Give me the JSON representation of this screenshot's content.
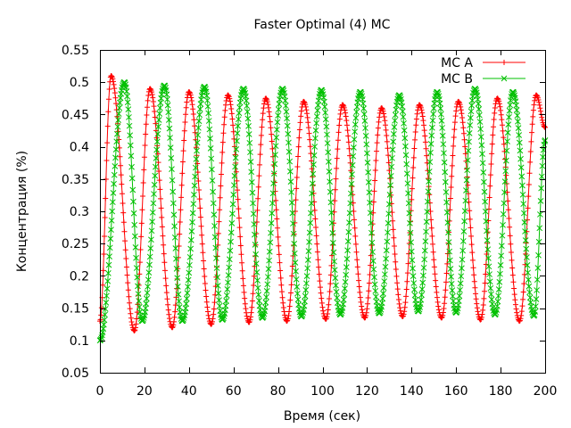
{
  "chart_data": {
    "type": "line",
    "title": "Faster Optimal (4) MC",
    "xlabel": "Время (сек)",
    "ylabel": "Концентрация (%)",
    "xlim": [
      0,
      200
    ],
    "ylim": [
      0.05,
      0.55
    ],
    "xticks": [
      "0",
      "20",
      "40",
      "60",
      "80",
      "100",
      "120",
      "140",
      "160",
      "180",
      "200"
    ],
    "yticks": [
      "0.05",
      "0.1",
      "0.15",
      "0.2",
      "0.25",
      "0.3",
      "0.35",
      "0.4",
      "0.45",
      "0.5",
      "0.55"
    ],
    "grid": false,
    "legend": "top-right",
    "series": [
      {
        "name": "MC A",
        "color": "#ff0000",
        "marker": "plus",
        "peaks": [
          [
            5.0,
            0.51
          ],
          [
            22.5,
            0.49
          ],
          [
            40.0,
            0.485
          ],
          [
            57.5,
            0.48
          ],
          [
            74.5,
            0.475
          ],
          [
            91.5,
            0.47
          ],
          [
            109.0,
            0.465
          ],
          [
            126.5,
            0.46
          ],
          [
            143.5,
            0.465
          ],
          [
            161.0,
            0.47
          ],
          [
            178.5,
            0.475
          ],
          [
            196.0,
            0.48
          ]
        ],
        "troughs": [
          [
            0,
            0.13
          ],
          [
            15.5,
            0.115
          ],
          [
            32.5,
            0.12
          ],
          [
            50.0,
            0.125
          ],
          [
            67.0,
            0.128
          ],
          [
            84.0,
            0.13
          ],
          [
            101.5,
            0.133
          ],
          [
            119.0,
            0.135
          ],
          [
            136.0,
            0.137
          ],
          [
            153.5,
            0.135
          ],
          [
            171.0,
            0.132
          ],
          [
            188.5,
            0.13
          ],
          [
            200,
            0.43
          ]
        ]
      },
      {
        "name": "MC B",
        "color": "#00c000",
        "marker": "cross",
        "peaks": [
          [
            11.0,
            0.5
          ],
          [
            29.0,
            0.495
          ],
          [
            47.0,
            0.493
          ],
          [
            64.5,
            0.49
          ],
          [
            82.0,
            0.49
          ],
          [
            99.5,
            0.488
          ],
          [
            117.0,
            0.485
          ],
          [
            134.5,
            0.48
          ],
          [
            151.5,
            0.485
          ],
          [
            168.5,
            0.49
          ],
          [
            185.5,
            0.485
          ]
        ],
        "troughs": [
          [
            0,
            0.1
          ],
          [
            19.0,
            0.13
          ],
          [
            37.0,
            0.13
          ],
          [
            55.0,
            0.132
          ],
          [
            73.0,
            0.135
          ],
          [
            90.5,
            0.137
          ],
          [
            108.0,
            0.14
          ],
          [
            125.5,
            0.142
          ],
          [
            143.0,
            0.145
          ],
          [
            160.0,
            0.143
          ],
          [
            177.5,
            0.14
          ],
          [
            195.0,
            0.138
          ],
          [
            200,
            0.41
          ]
        ]
      }
    ]
  }
}
